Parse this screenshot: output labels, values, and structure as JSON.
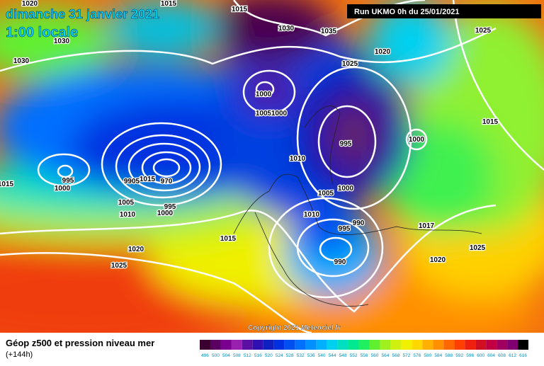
{
  "header": {
    "date": "dimanche 31 janvier 2021",
    "time": "1:00 locale",
    "run": "Run UKMO 0h du 25/01/2021"
  },
  "copyright": "Copyright 2021 Meteociel.fr",
  "footer": {
    "title": "Géop z500 et pression niveau mer",
    "lead": "(+144h)"
  },
  "isobar_labels": [
    1020,
    1015,
    1015,
    1030,
    1035,
    1020,
    1025,
    1025,
    1030,
    1030,
    1000,
    1005,
    1000,
    1015,
    995,
    1000,
    1010,
    995,
    1000,
    970,
    1015,
    9905,
    1005,
    995,
    1000,
    1010,
    1015,
    1005,
    1000,
    1010,
    995,
    990,
    1017,
    1015,
    1025,
    1020,
    1020,
    990,
    1025
  ],
  "colorbar": {
    "labels": [
      496,
      500,
      504,
      508,
      512,
      516,
      520,
      524,
      528,
      532,
      536,
      540,
      544,
      548,
      552,
      556,
      560,
      564,
      568,
      572,
      576,
      580,
      584,
      588,
      592,
      596,
      600,
      604,
      608,
      612,
      616
    ],
    "colors": [
      "#3a0030",
      "#5a0060",
      "#7a0090",
      "#9a20b0",
      "#5a10a0",
      "#3010b0",
      "#1020c0",
      "#0030e0",
      "#0050f0",
      "#0070ff",
      "#0090ff",
      "#00b0ff",
      "#00d0f0",
      "#00e0c0",
      "#00e890",
      "#20f060",
      "#60f030",
      "#a0f020",
      "#d0f010",
      "#f0f000",
      "#ffd800",
      "#ffb000",
      "#ff9000",
      "#ff6800",
      "#ff4000",
      "#f02010",
      "#d01020",
      "#c00040",
      "#a00060",
      "#800070",
      "#000000"
    ]
  }
}
